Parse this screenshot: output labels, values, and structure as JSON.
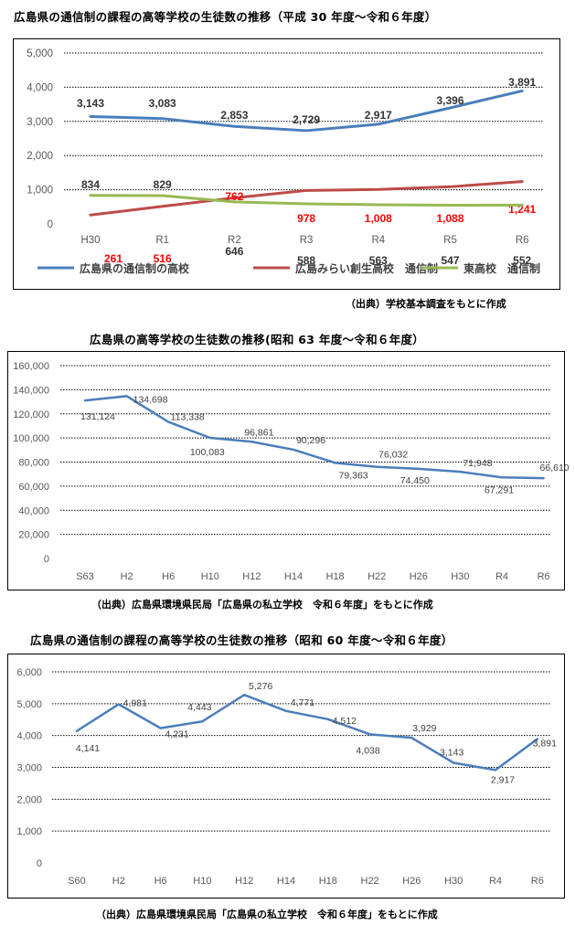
{
  "chart1": {
    "title": "広島県の通信制の課程の高等学校の生徒数の推移（平成 30 年度～令和６年度）",
    "source": "（出典）学校基本調査をもとに作成"
  },
  "chart2": {
    "title": "広島県の高等学校の生徒数の推移(昭和 63 年度～令和６年度）",
    "source": "（出典）広島県環境県民局「広島県の私立学校　令和６年度」をもとに作成"
  },
  "chart3": {
    "title": "広島県の通信制の課程の高等学校の生徒数の推移（昭和 60 年度～令和６年度）",
    "source": "（出典）広島県環境県民局「広島県の私立学校　令和６年度」をもとに作成"
  },
  "chart_data": [
    {
      "type": "line",
      "title": "広島県の通信制の課程の高等学校の生徒数の推移（平成 30 年度～令和６年度）",
      "categories": [
        "H30",
        "R1",
        "R2",
        "R3",
        "R4",
        "R5",
        "R6"
      ],
      "ylim": [
        0,
        5000
      ],
      "yticks": [
        "0",
        "1,000",
        "2,000",
        "3,000",
        "4,000",
        "5,000"
      ],
      "grid": true,
      "legend": "bottom",
      "series": [
        {
          "name": "広島県の通信制の高校",
          "color": "#4A7EBB",
          "values": [
            3143,
            3083,
            2853,
            2729,
            2917,
            3396,
            3891
          ],
          "labels": [
            "3,143",
            "3,083",
            "2,853",
            "2,729",
            "2,917",
            "3,396",
            "3,891"
          ],
          "label_color": "#333333"
        },
        {
          "name": "広島みらい創生高校　通信制",
          "color": "#BE4B48",
          "values": [
            261,
            516,
            762,
            978,
            1008,
            1088,
            1241
          ],
          "labels": [
            "261",
            "516",
            "762",
            "978",
            "1,008",
            "1,088",
            "1,241"
          ],
          "label_color": "#FF0000"
        },
        {
          "name": "東高校　通信制",
          "color": "#98B954",
          "values": [
            834,
            829,
            646,
            588,
            563,
            547,
            552
          ],
          "labels": [
            "834",
            "829",
            "646",
            "588",
            "563",
            "547",
            "552"
          ],
          "label_color": "#333333"
        }
      ]
    },
    {
      "type": "line",
      "title": "広島県の高等学校の生徒数の推移(昭和 63 年度～令和６年度）",
      "categories": [
        "S63",
        "H2",
        "H6",
        "H10",
        "H12",
        "H14",
        "H18",
        "H22",
        "H26",
        "H30",
        "R4",
        "R6"
      ],
      "ylim": [
        0,
        160000
      ],
      "yticks": [
        "0",
        "20,000",
        "40,000",
        "60,000",
        "80,000",
        "100,000",
        "120,000",
        "140,000",
        "160,000"
      ],
      "grid": true,
      "series": [
        {
          "color": "#4A7EBB",
          "values": [
            131124,
            134698,
            113338,
            100083,
            96861,
            90296,
            79363,
            76032,
            74450,
            71948,
            67291,
            66610
          ],
          "labels": [
            "131,124",
            "134,698",
            "113,338",
            "100,083",
            "96,861",
            "90,296",
            "79,363",
            "76,032",
            "74,450",
            "71,948",
            "67,291",
            "66,610"
          ]
        }
      ]
    },
    {
      "type": "line",
      "title": "広島県の通信制の課程の高等学校の生徒数の推移（昭和 60 年度～令和６年度）",
      "categories": [
        "S60",
        "H2",
        "H6",
        "H10",
        "H12",
        "H14",
        "H18",
        "H22",
        "H26",
        "H30",
        "R4",
        "R6"
      ],
      "ylim": [
        0,
        6000
      ],
      "yticks": [
        "0",
        "1,000",
        "2,000",
        "3,000",
        "4,000",
        "5,000",
        "6,000"
      ],
      "grid": true,
      "series": [
        {
          "color": "#4A7EBB",
          "values": [
            4141,
            4981,
            4231,
            4443,
            5276,
            4771,
            4512,
            4038,
            3929,
            3143,
            2917,
            3891
          ],
          "labels": [
            "4,141",
            "4,981",
            "4,231",
            "4,443",
            "5,276",
            "4,771",
            "4,512",
            "4,038",
            "3,929",
            "3,143",
            "2,917",
            "3,891"
          ]
        }
      ]
    }
  ]
}
